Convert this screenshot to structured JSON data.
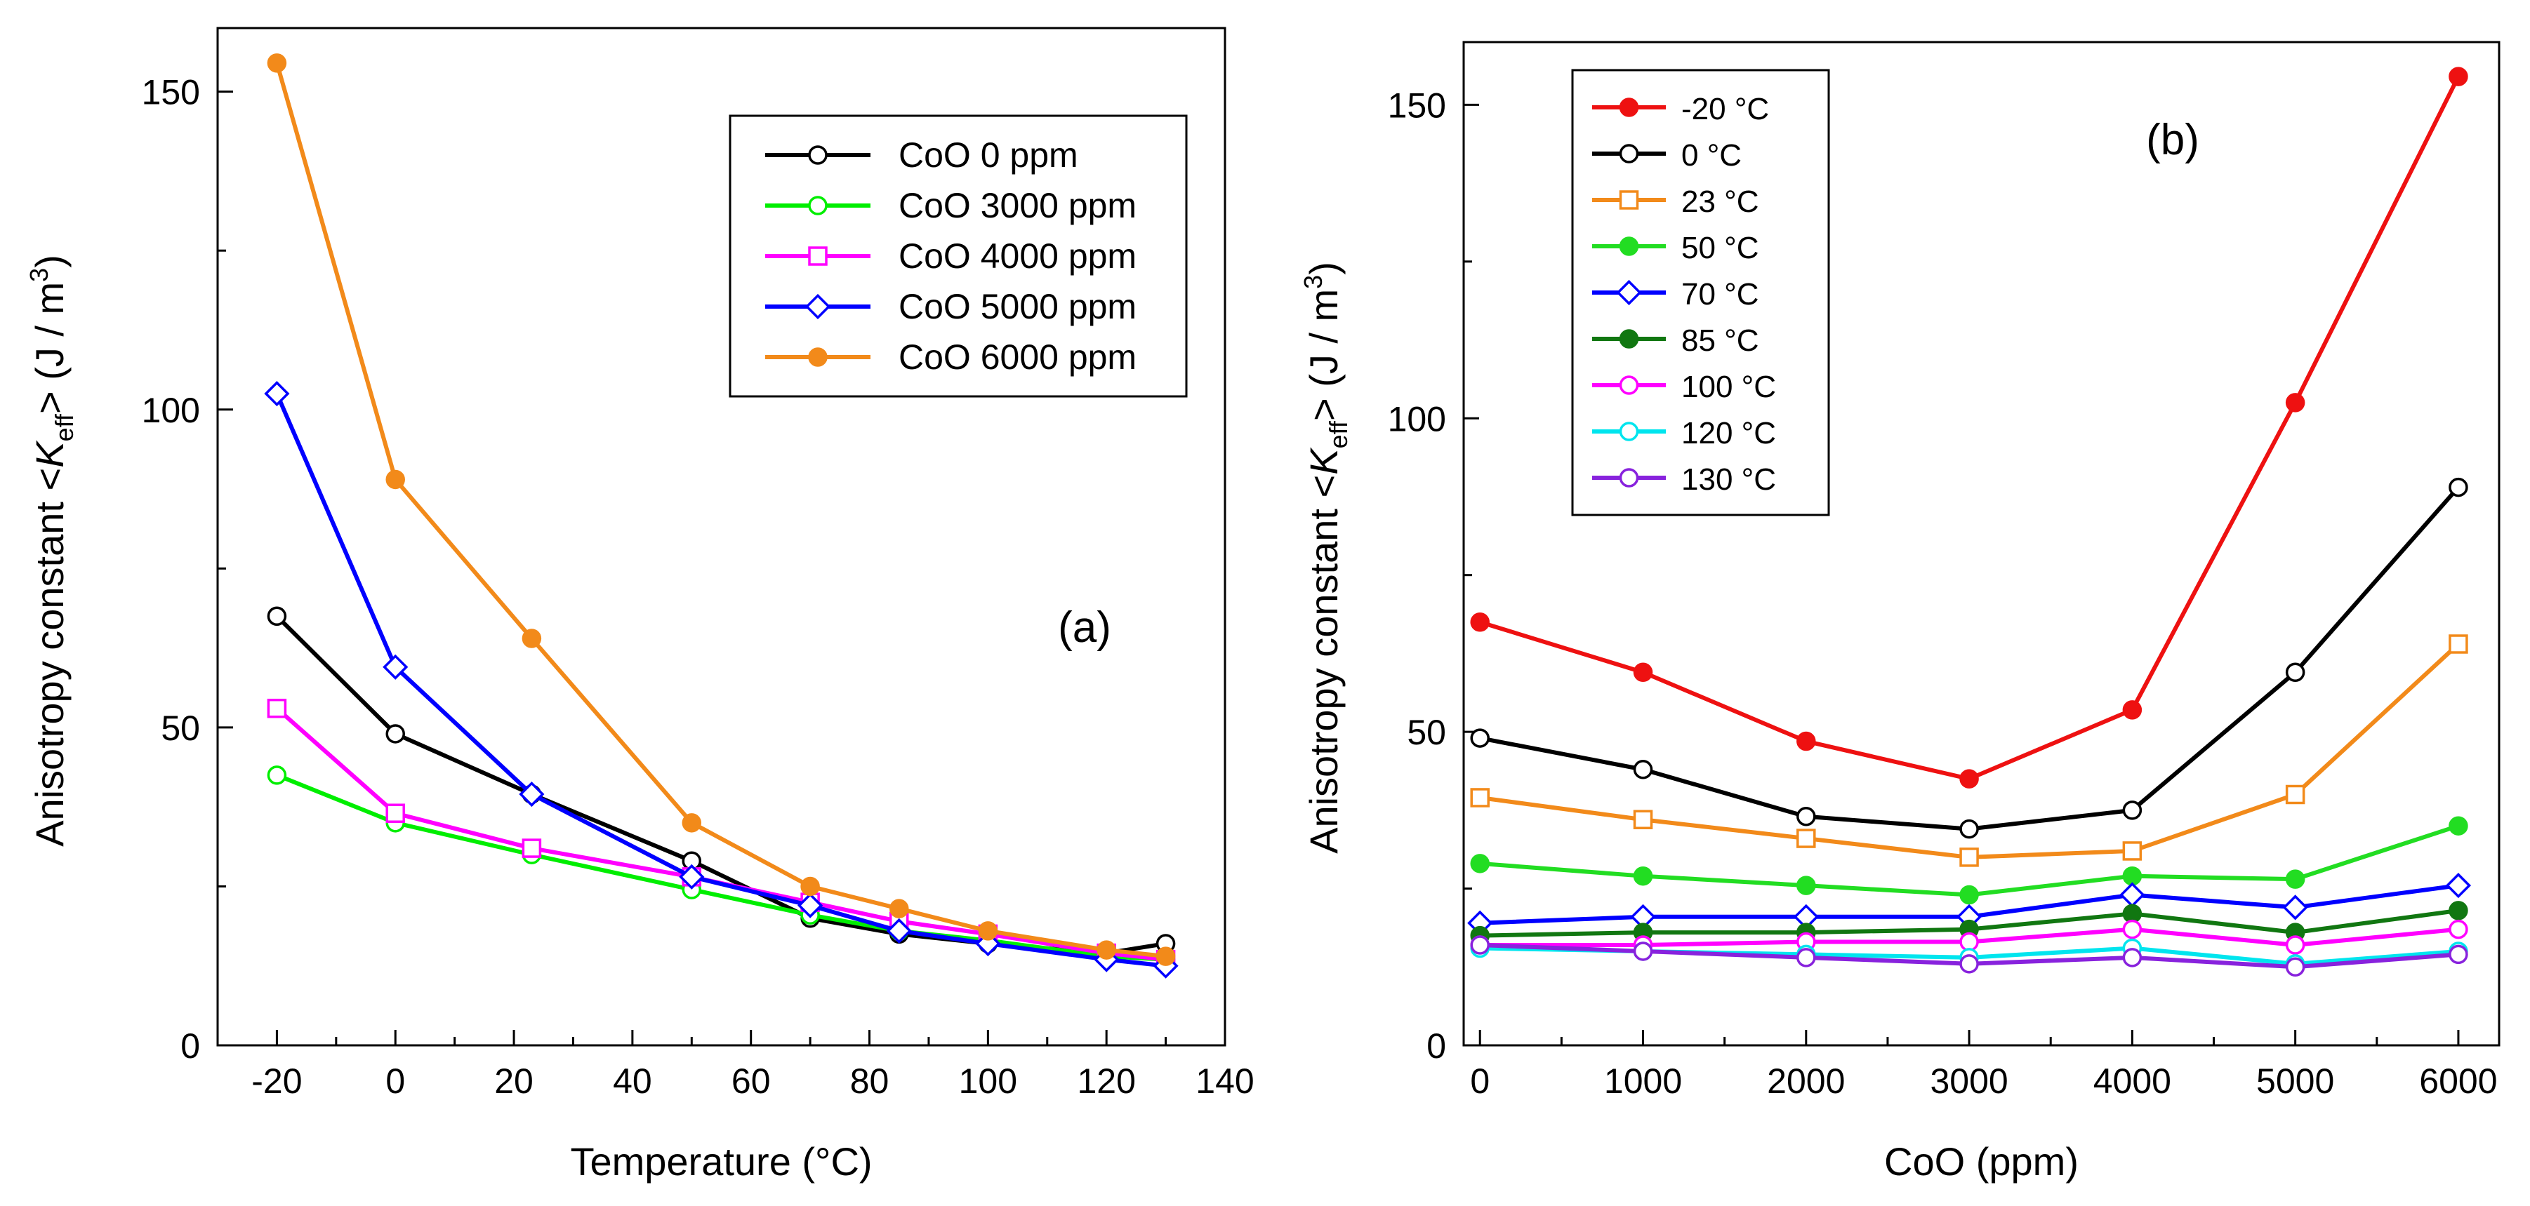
{
  "chart_data": [
    {
      "type": "line",
      "panel_label": "(a)",
      "xlabel": "Temperature (°C)",
      "ylabel_prefix": "Anisotropy constant <",
      "ylabel_symbol": "K",
      "ylabel_sub": "eff",
      "ylabel_mid": "> (J / m",
      "ylabel_sup": "3",
      "ylabel_suffix": ")",
      "xlim": [
        -30,
        140
      ],
      "ylim": [
        0,
        160
      ],
      "xticks": [
        -20,
        0,
        20,
        40,
        60,
        80,
        100,
        120,
        140
      ],
      "yticks": [
        0,
        50,
        100,
        150
      ],
      "legend_position": "top-right",
      "x": [
        -20,
        0,
        23,
        50,
        70,
        85,
        100,
        120,
        130
      ],
      "series": [
        {
          "name": "CoO 0 ppm",
          "color": "#000000",
          "marker": "circle-open",
          "values": [
            67.5,
            49,
            39.5,
            29,
            20,
            17.5,
            16,
            14.5,
            16
          ]
        },
        {
          "name": "CoO 3000 ppm",
          "color": "#00ee00",
          "marker": "circle-open",
          "values": [
            42.5,
            35,
            30,
            24.5,
            20.5,
            18,
            16.5,
            14,
            13.5
          ]
        },
        {
          "name": "CoO 4000 ppm",
          "color": "#ff00ff",
          "marker": "square-open",
          "values": [
            53,
            36.5,
            31,
            26.5,
            22.5,
            19.5,
            17.5,
            14.5,
            13.5
          ]
        },
        {
          "name": "CoO 5000 ppm",
          "color": "#0000ff",
          "marker": "diamond-open",
          "values": [
            102.5,
            59.5,
            39.5,
            26.5,
            22,
            18,
            16,
            13.5,
            12.5
          ]
        },
        {
          "name": "CoO 6000 ppm",
          "color": "#f28a1a",
          "marker": "circle-filled",
          "values": [
            154.5,
            89,
            64,
            35,
            25,
            21.5,
            18,
            15,
            14
          ]
        }
      ]
    },
    {
      "type": "line",
      "panel_label": "(b)",
      "xlabel": "CoO (ppm)",
      "ylabel_prefix": "Anisotropy constant <",
      "ylabel_symbol": "K",
      "ylabel_sub": "eff",
      "ylabel_mid": "> (J / m",
      "ylabel_sup": "3",
      "ylabel_suffix": ")",
      "xlim": [
        -100,
        6250
      ],
      "ylim": [
        0,
        160
      ],
      "xticks": [
        0,
        1000,
        2000,
        3000,
        4000,
        5000,
        6000
      ],
      "yticks": [
        0,
        50,
        100,
        150
      ],
      "legend_position": "top-left",
      "x": [
        0,
        1000,
        2000,
        3000,
        4000,
        5000,
        6000
      ],
      "series": [
        {
          "name": "-20 °C",
          "color": "#ee1111",
          "marker": "circle-filled",
          "values": [
            67.5,
            59.5,
            48.5,
            42.5,
            53.5,
            102.5,
            154.5
          ]
        },
        {
          "name": "0 °C",
          "color": "#000000",
          "marker": "circle-open",
          "values": [
            49,
            44,
            36.5,
            34.5,
            37.5,
            59.5,
            89
          ]
        },
        {
          "name": "23 °C",
          "color": "#f28a1a",
          "marker": "square-open",
          "values": [
            39.5,
            36,
            33,
            30,
            31,
            40,
            64
          ]
        },
        {
          "name": "50 °C",
          "color": "#22dd22",
          "marker": "circle-filled",
          "values": [
            29,
            27,
            25.5,
            24,
            27,
            26.5,
            35
          ]
        },
        {
          "name": "70 °C",
          "color": "#0000ff",
          "marker": "diamond-open",
          "values": [
            19.5,
            20.5,
            20.5,
            20.5,
            24,
            22,
            25.5
          ]
        },
        {
          "name": "85 °C",
          "color": "#117711",
          "marker": "circle-filled",
          "values": [
            17.5,
            18,
            18,
            18.5,
            21,
            18,
            21.5
          ]
        },
        {
          "name": "100 °C",
          "color": "#ff00ff",
          "marker": "circle-open",
          "values": [
            16,
            16,
            16.5,
            16.5,
            18.5,
            16,
            18.5
          ]
        },
        {
          "name": "120 °C",
          "color": "#00e5ee",
          "marker": "circle-open",
          "values": [
            15.5,
            15,
            14.5,
            14,
            15.5,
            13,
            15
          ]
        },
        {
          "name": "130 °C",
          "color": "#8822dd",
          "marker": "circle-open",
          "values": [
            16,
            15,
            14,
            13,
            14,
            12.5,
            14.5
          ]
        }
      ]
    }
  ]
}
